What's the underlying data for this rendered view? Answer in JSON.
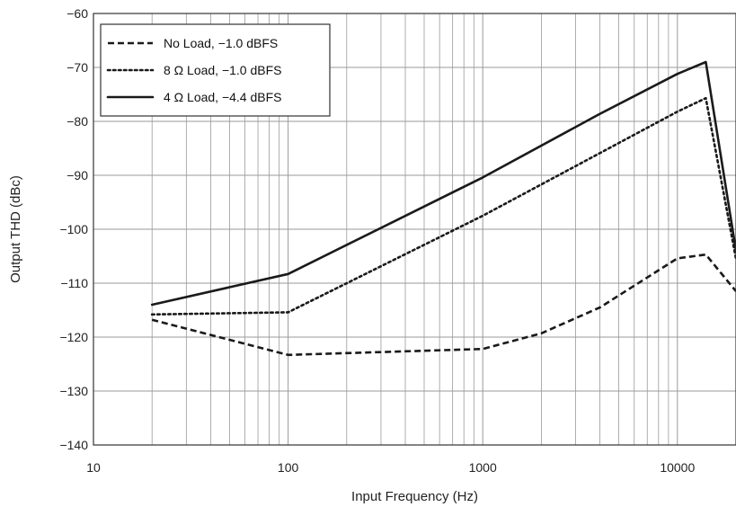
{
  "chart_data": {
    "type": "line",
    "title": "",
    "xlabel": "Input Frequency (Hz)",
    "ylabel": "Output THD (dBc)",
    "x_scale": "log",
    "xlim": [
      10,
      20000
    ],
    "ylim": [
      -140,
      -60
    ],
    "x_ticks": [
      10,
      100,
      1000,
      10000
    ],
    "x_tick_labels": [
      "10",
      "100",
      "1000",
      "10000"
    ],
    "y_ticks": [
      -60,
      -70,
      -80,
      -90,
      -100,
      -110,
      -120,
      -130,
      -140
    ],
    "y_tick_labels": [
      "−60",
      "−70",
      "−80",
      "−90",
      "−100",
      "−110",
      "−120",
      "−130",
      "−140"
    ],
    "grid": true,
    "legend_position": "top-left",
    "series": [
      {
        "name": "No Load, −1.0 dBFS",
        "style": "dashed",
        "color": "#1a1a1a",
        "x": [
          20,
          100,
          1000,
          2000,
          4000,
          10000,
          14000,
          20000
        ],
        "y": [
          -116.8,
          -123.3,
          -122.2,
          -119.3,
          -114.5,
          -105.4,
          -104.7,
          -111.5
        ]
      },
      {
        "name": "8 Ω Load, −1.0 dBFS",
        "style": "dotted",
        "color": "#1a1a1a",
        "x": [
          20,
          100,
          1000,
          10000,
          14000,
          20000
        ],
        "y": [
          -115.8,
          -115.4,
          -97.5,
          -78.2,
          -75.7,
          -105.5
        ]
      },
      {
        "name": "4 Ω Load, −4.4 dBFS",
        "style": "solid",
        "color": "#1a1a1a",
        "x": [
          20,
          100,
          1000,
          4000,
          10000,
          14000,
          20000
        ],
        "y": [
          -114.0,
          -108.3,
          -90.4,
          -78.6,
          -71.2,
          -69.0,
          -104.0
        ]
      }
    ]
  }
}
